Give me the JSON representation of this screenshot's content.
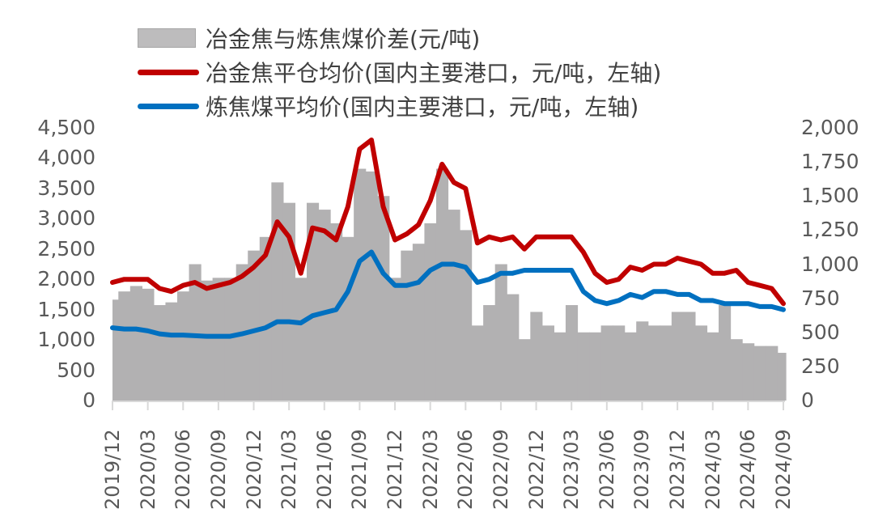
{
  "chart_data": {
    "type": "bar+line",
    "title": "",
    "legend": [
      {
        "name": "冶金焦与炼焦煤价差(元/吨)",
        "type": "bar",
        "color": "#b2b1b2",
        "axis": "right"
      },
      {
        "name": "冶金焦平仓均价(国内主要港口，元/吨，左轴)",
        "type": "line",
        "color": "#c00000",
        "axis": "left"
      },
      {
        "name": "炼焦煤平均价(国内主要港口，元/吨，左轴)",
        "type": "line",
        "color": "#0070c0",
        "axis": "left"
      }
    ],
    "legend_position": "top",
    "grid": false,
    "left_axis": {
      "ylim": [
        0,
        4500
      ],
      "ticks": [
        "0",
        "500",
        "1,000",
        "1,500",
        "2,000",
        "2,500",
        "3,000",
        "3,500",
        "4,000",
        "4,500"
      ]
    },
    "right_axis": {
      "ylim": [
        0,
        2000
      ],
      "ticks": [
        "0",
        "250",
        "500",
        "750",
        "1,000",
        "1,250",
        "1,500",
        "1,750",
        "2,000"
      ]
    },
    "x_tick_labels": [
      "2019/12",
      "2020/03",
      "2020/06",
      "2020/09",
      "2020/12",
      "2021/03",
      "2021/06",
      "2021/09",
      "2021/12",
      "2022/03",
      "2022/06",
      "2022/09",
      "2022/12",
      "2023/03",
      "2023/06",
      "2023/09",
      "2023/12",
      "2024/03",
      "2024/06",
      "2024/09"
    ],
    "x": [
      "2019/12",
      "2020/01",
      "2020/02",
      "2020/03",
      "2020/04",
      "2020/05",
      "2020/06",
      "2020/07",
      "2020/08",
      "2020/09",
      "2020/10",
      "2020/11",
      "2020/12",
      "2021/01",
      "2021/02",
      "2021/03",
      "2021/04",
      "2021/05",
      "2021/06",
      "2021/07",
      "2021/08",
      "2021/09",
      "2021/10",
      "2021/11",
      "2021/12",
      "2022/01",
      "2022/02",
      "2022/03",
      "2022/04",
      "2022/05",
      "2022/06",
      "2022/07",
      "2022/08",
      "2022/09",
      "2022/10",
      "2022/11",
      "2022/12",
      "2023/01",
      "2023/02",
      "2023/03",
      "2023/04",
      "2023/05",
      "2023/06",
      "2023/07",
      "2023/08",
      "2023/09",
      "2023/10",
      "2023/11",
      "2023/12",
      "2024/01",
      "2024/02",
      "2024/03",
      "2024/04",
      "2024/05",
      "2024/06",
      "2024/07",
      "2024/08",
      "2024/09"
    ],
    "series": [
      {
        "name": "冶金焦与炼焦煤价差(元/吨)",
        "axis": "right",
        "values": [
          740,
          800,
          840,
          820,
          700,
          720,
          800,
          1000,
          880,
          900,
          900,
          1000,
          1100,
          1200,
          1600,
          1450,
          900,
          1450,
          1400,
          1300,
          1200,
          1700,
          1680,
          1500,
          900,
          1100,
          1150,
          1300,
          1700,
          1400,
          1250,
          550,
          700,
          1000,
          780,
          450,
          650,
          550,
          500,
          700,
          500,
          500,
          550,
          550,
          500,
          580,
          550,
          550,
          650,
          650,
          550,
          500,
          700,
          450,
          420,
          400,
          400,
          350
        ]
      },
      {
        "name": "冶金焦平仓均价(国内主要港口，元/吨，左轴)",
        "axis": "left",
        "values": [
          1950,
          2000,
          2000,
          2000,
          1850,
          1800,
          1900,
          1950,
          1850,
          1900,
          1950,
          2050,
          2200,
          2400,
          2950,
          2700,
          2100,
          2850,
          2800,
          2650,
          3200,
          4150,
          4300,
          3200,
          2650,
          2750,
          2900,
          3300,
          3900,
          3600,
          3500,
          2600,
          2700,
          2650,
          2700,
          2500,
          2700,
          2700,
          2700,
          2700,
          2450,
          2100,
          1950,
          2000,
          2200,
          2150,
          2250,
          2250,
          2350,
          2300,
          2250,
          2100,
          2100,
          2150,
          1950,
          1900,
          1850,
          1600
        ]
      },
      {
        "name": "炼焦煤平均价(国内主要港口，元/吨，左轴)",
        "axis": "left",
        "values": [
          1200,
          1180,
          1180,
          1150,
          1100,
          1080,
          1080,
          1070,
          1060,
          1060,
          1060,
          1100,
          1150,
          1200,
          1300,
          1300,
          1280,
          1400,
          1450,
          1500,
          1800,
          2300,
          2450,
          2100,
          1900,
          1900,
          1950,
          2150,
          2250,
          2250,
          2200,
          1950,
          2000,
          2100,
          2100,
          2150,
          2150,
          2150,
          2150,
          2150,
          1800,
          1650,
          1600,
          1650,
          1750,
          1700,
          1800,
          1800,
          1750,
          1750,
          1650,
          1650,
          1600,
          1600,
          1600,
          1550,
          1550,
          1500
        ]
      }
    ]
  },
  "legend": {
    "bar_label": "冶金焦与炼焦煤价差(元/吨)",
    "coke_label": "冶金焦平仓均价(国内主要港口，元/吨，左轴)",
    "coal_label": "炼焦煤平均价(国内主要港口，元/吨，左轴)",
    "bar_color": "#b2b1b2",
    "coke_color": "#c00000",
    "coal_color": "#0070c0"
  }
}
